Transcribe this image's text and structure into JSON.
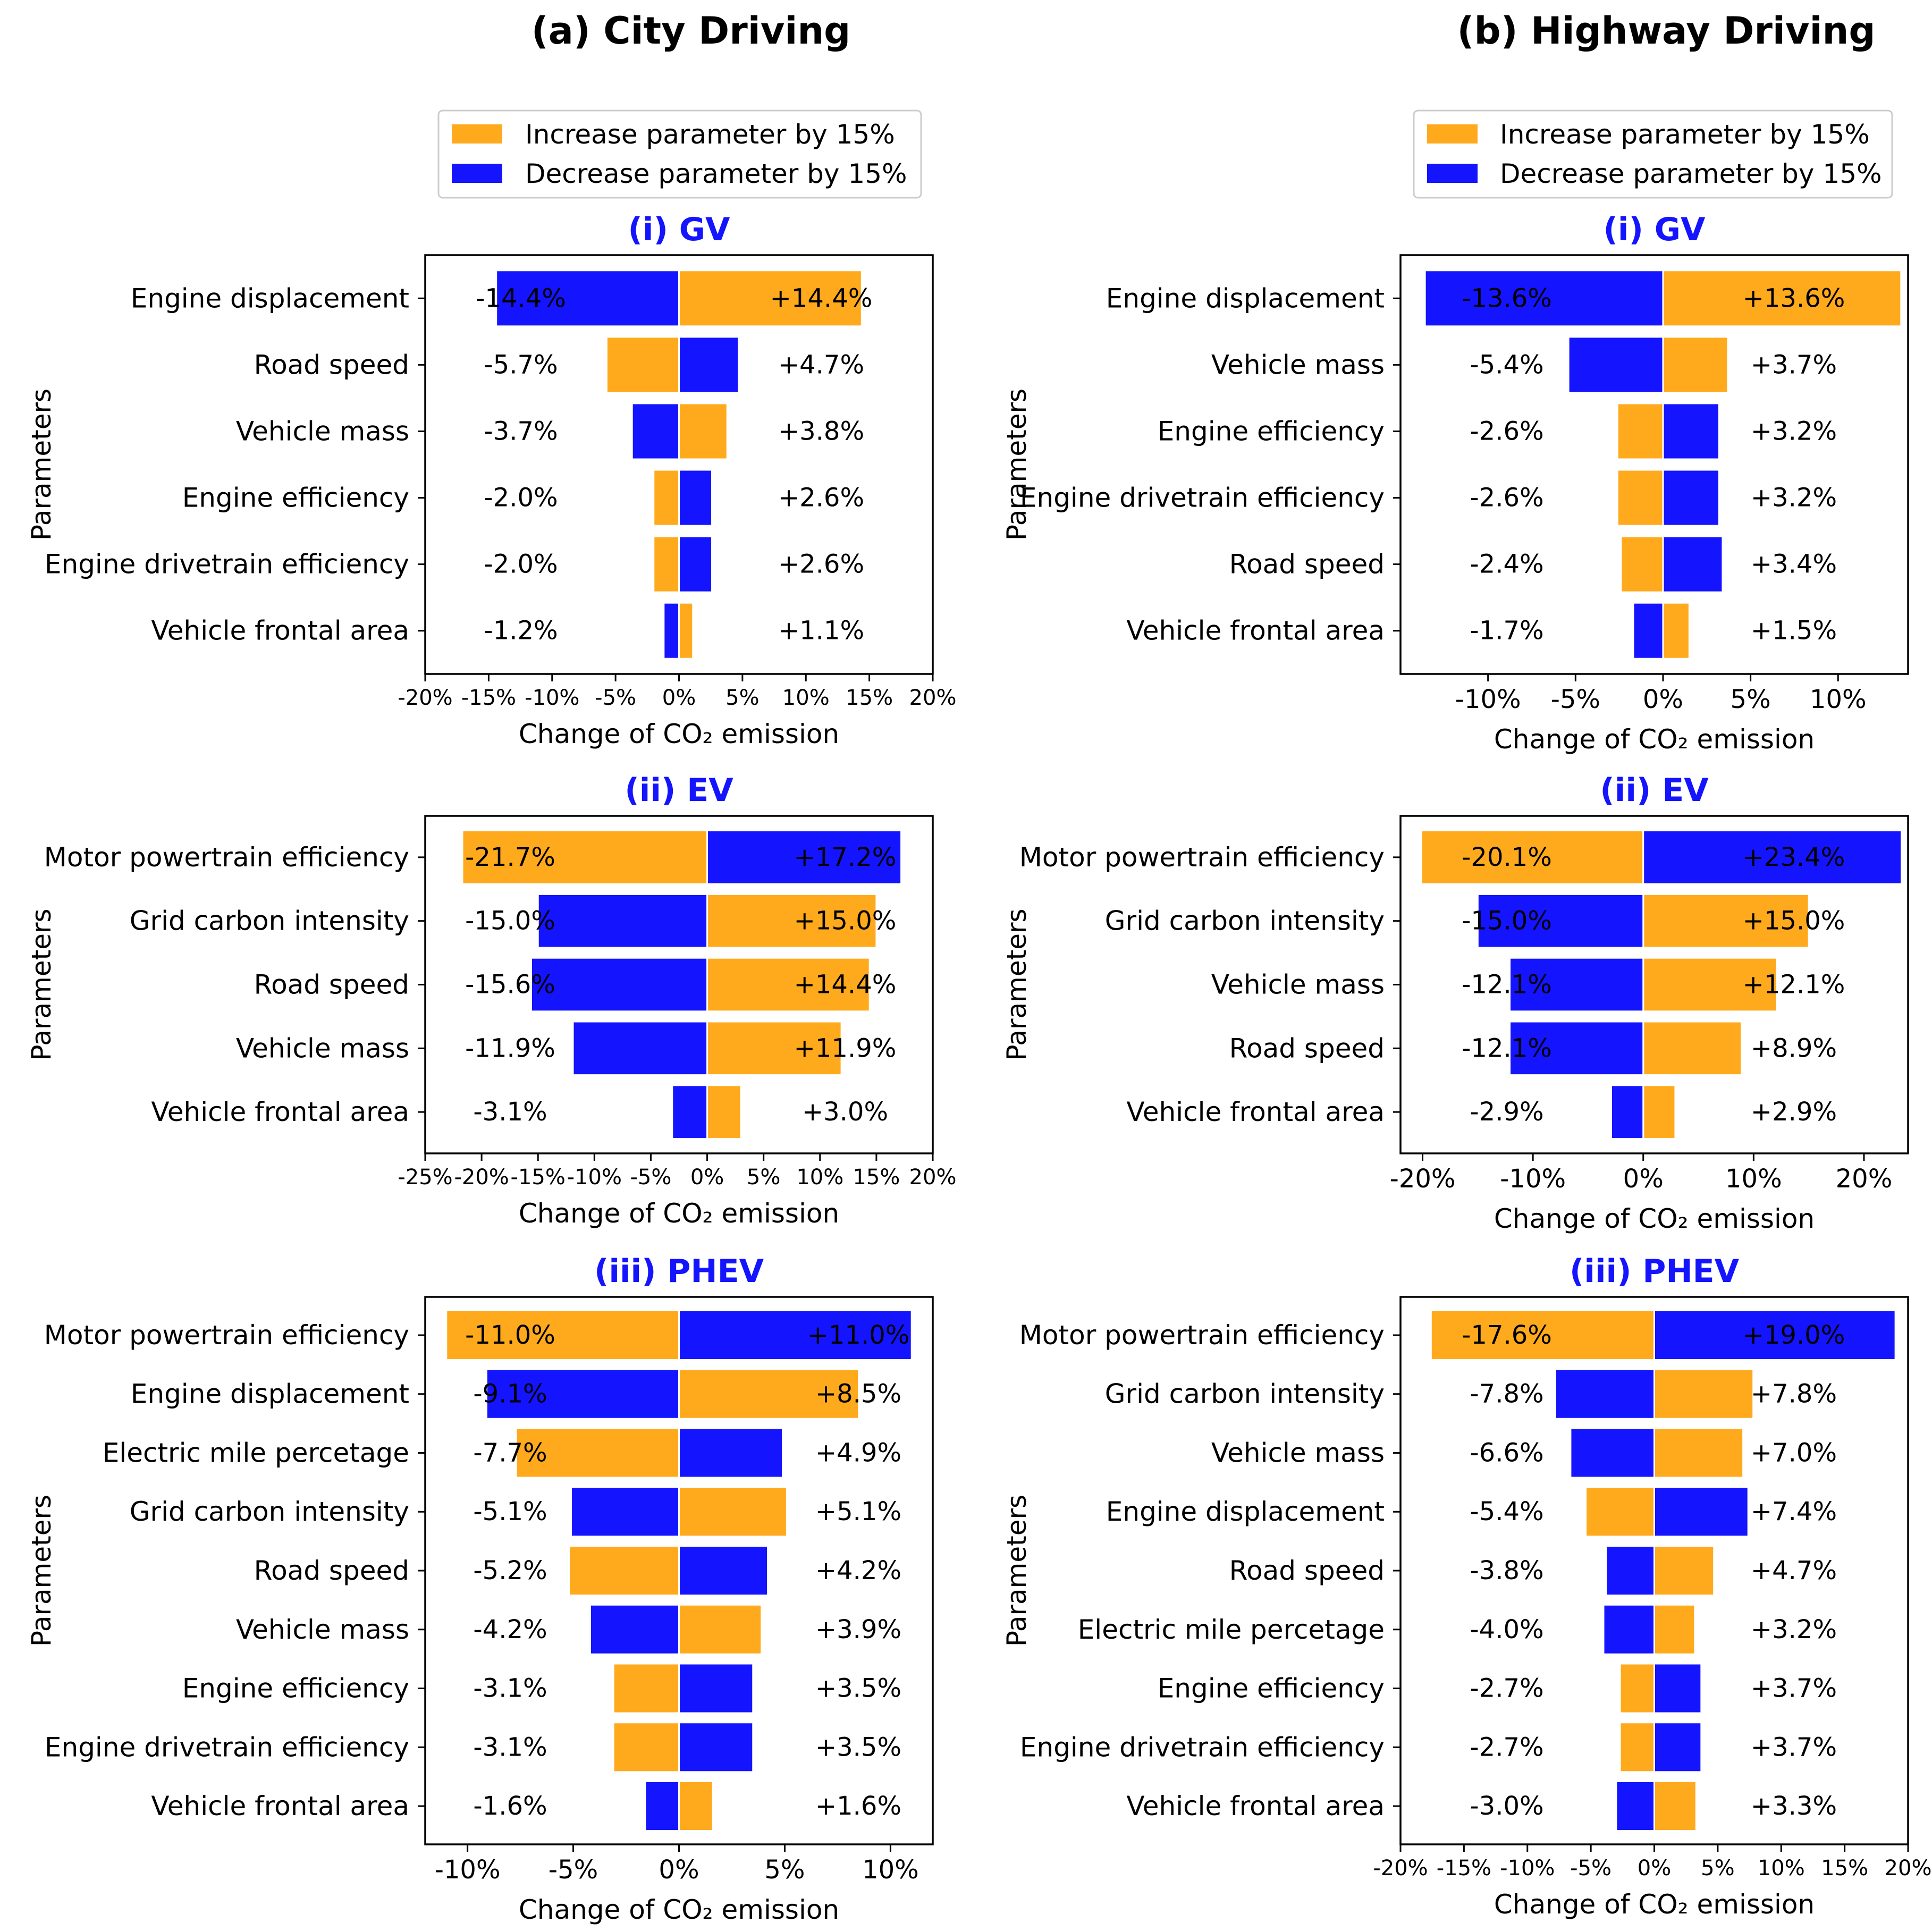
{
  "colors": {
    "increase": "#FFAA1C",
    "decrease": "#1414FF",
    "title_color": "#1414FF"
  },
  "columns": [
    {
      "title": "(a) City Driving"
    },
    {
      "title": "(b) Highway Driving"
    }
  ],
  "legend": {
    "placement": "above first panel of each column",
    "entries": [
      "Increase parameter by 15%",
      "Decrease parameter by 15%"
    ]
  },
  "chart_data": [
    {
      "type": "bar",
      "orientation": "horizontal",
      "column": 0,
      "title": "(i) GV",
      "xlabel": "Change of CO₂ emission",
      "ylabel": "Parameters",
      "xlim": [
        -20,
        20
      ],
      "xticks": [
        "-20%",
        "-15%",
        "-10%",
        "-5%",
        "0%",
        "5%",
        "10%",
        "15%",
        "20%"
      ],
      "xtick_values": [
        -20,
        -15,
        -10,
        -5,
        0,
        5,
        10,
        15,
        20
      ],
      "categories": [
        "Engine displacement",
        "Road speed",
        "Vehicle mass",
        "Engine efficiency",
        "Engine drivetrain efficiency",
        "Vehicle frontal area"
      ],
      "series": [
        {
          "name": "Increase parameter by 15%",
          "values": [
            14.4,
            -5.7,
            3.8,
            -2.0,
            -2.0,
            1.1
          ]
        },
        {
          "name": "Decrease parameter by 15%",
          "values": [
            -14.4,
            4.7,
            -3.7,
            2.6,
            2.6,
            -1.2
          ]
        }
      ],
      "labels_left": [
        "-14.4%",
        "-5.7%",
        "-3.7%",
        "-2.0%",
        "-2.0%",
        "-1.2%"
      ],
      "labels_right": [
        "+14.4%",
        "+4.7%",
        "+3.8%",
        "+2.6%",
        "+2.6%",
        "+1.1%"
      ]
    },
    {
      "type": "bar",
      "orientation": "horizontal",
      "column": 0,
      "title": "(ii) EV",
      "xlabel": "Change of CO₂ emission",
      "ylabel": "Parameters",
      "xlim": [
        -25,
        20
      ],
      "xticks": [
        "-25%",
        "-20%",
        "-15%",
        "-10%",
        "-5%",
        "0%",
        "5%",
        "10%",
        "15%",
        "20%"
      ],
      "xtick_values": [
        -25,
        -20,
        -15,
        -10,
        -5,
        0,
        5,
        10,
        15,
        20
      ],
      "categories": [
        "Motor powertrain efficiency",
        "Grid carbon intensity",
        "Road speed",
        "Vehicle mass",
        "Vehicle frontal area"
      ],
      "series": [
        {
          "name": "Increase parameter by 15%",
          "values": [
            -21.7,
            15.0,
            14.4,
            11.9,
            3.0
          ]
        },
        {
          "name": "Decrease parameter by 15%",
          "values": [
            17.2,
            -15.0,
            -15.6,
            -11.9,
            -3.1
          ]
        }
      ],
      "labels_left": [
        "-21.7%",
        "-15.0%",
        "-15.6%",
        "-11.9%",
        "-3.1%"
      ],
      "labels_right": [
        "+17.2%",
        "+15.0%",
        "+14.4%",
        "+11.9%",
        "+3.0%"
      ]
    },
    {
      "type": "bar",
      "orientation": "horizontal",
      "column": 0,
      "title": "(iii) PHEV",
      "xlabel": "Change of CO₂ emission",
      "ylabel": "Parameters",
      "xlim": [
        -12,
        12
      ],
      "xticks": [
        "-10%",
        "-5%",
        "0%",
        "5%",
        "10%"
      ],
      "xtick_values": [
        -10,
        -5,
        0,
        5,
        10
      ],
      "categories": [
        "Motor powertrain efficiency",
        "Engine displacement",
        "Electric mile percetage",
        "Grid carbon intensity",
        "Road speed",
        "Vehicle mass",
        "Engine efficiency",
        "Engine drivetrain efficiency",
        "Vehicle frontal area"
      ],
      "series": [
        {
          "name": "Increase parameter by 15%",
          "values": [
            -11.0,
            8.5,
            -7.7,
            5.1,
            -5.2,
            3.9,
            -3.1,
            -3.1,
            1.6
          ]
        },
        {
          "name": "Decrease parameter by 15%",
          "values": [
            11.0,
            -9.1,
            4.9,
            -5.1,
            4.2,
            -4.2,
            3.5,
            3.5,
            -1.6
          ]
        }
      ],
      "labels_left": [
        "-11.0%",
        "-9.1%",
        "-7.7%",
        "-5.1%",
        "-5.2%",
        "-4.2%",
        "-3.1%",
        "-3.1%",
        "-1.6%"
      ],
      "labels_right": [
        "+11.0%",
        "+8.5%",
        "+4.9%",
        "+5.1%",
        "+4.2%",
        "+3.9%",
        "+3.5%",
        "+3.5%",
        "+1.6%"
      ]
    },
    {
      "type": "bar",
      "orientation": "horizontal",
      "column": 1,
      "title": "(i) GV",
      "xlabel": "Change of CO₂ emission",
      "ylabel": "Parameters",
      "xlim": [
        -15,
        14
      ],
      "xticks": [
        "-10%",
        "-5%",
        "0%",
        "5%",
        "10%"
      ],
      "xtick_values": [
        -10,
        -5,
        0,
        5,
        10
      ],
      "categories": [
        "Engine displacement",
        "Vehicle mass",
        "Engine efficiency",
        "Engine drivetrain efficiency",
        "Road speed",
        "Vehicle frontal area"
      ],
      "series": [
        {
          "name": "Increase parameter by 15%",
          "values": [
            13.6,
            3.7,
            -2.6,
            -2.6,
            -2.4,
            1.5
          ]
        },
        {
          "name": "Decrease parameter by 15%",
          "values": [
            -13.6,
            -5.4,
            3.2,
            3.2,
            3.4,
            -1.7
          ]
        }
      ],
      "labels_left": [
        "-13.6%",
        "-5.4%",
        "-2.6%",
        "-2.6%",
        "-2.4%",
        "-1.7%"
      ],
      "labels_right": [
        "+13.6%",
        "+3.7%",
        "+3.2%",
        "+3.2%",
        "+3.4%",
        "+1.5%"
      ]
    },
    {
      "type": "bar",
      "orientation": "horizontal",
      "column": 1,
      "title": "(ii) EV",
      "xlabel": "Change of CO₂ emission",
      "ylabel": "Parameters",
      "xlim": [
        -22,
        24
      ],
      "xticks": [
        "-20%",
        "-10%",
        "0%",
        "10%",
        "20%"
      ],
      "xtick_values": [
        -20,
        -10,
        0,
        10,
        20
      ],
      "categories": [
        "Motor powertrain efficiency",
        "Grid carbon intensity",
        "Vehicle mass",
        "Road speed",
        "Vehicle frontal area"
      ],
      "series": [
        {
          "name": "Increase parameter by 15%",
          "values": [
            -20.1,
            15.0,
            12.1,
            8.9,
            2.9
          ]
        },
        {
          "name": "Decrease parameter by 15%",
          "values": [
            23.4,
            -15.0,
            -12.1,
            -12.1,
            -2.9
          ]
        }
      ],
      "labels_left": [
        "-20.1%",
        "-15.0%",
        "-12.1%",
        "-12.1%",
        "-2.9%"
      ],
      "labels_right": [
        "+23.4%",
        "+15.0%",
        "+12.1%",
        "+8.9%",
        "+2.9%"
      ]
    },
    {
      "type": "bar",
      "orientation": "horizontal",
      "column": 1,
      "title": "(iii) PHEV",
      "xlabel": "Change of CO₂ emission",
      "ylabel": "Parameters",
      "xlim": [
        -20,
        20
      ],
      "xticks": [
        "-20%",
        "-15%",
        "-10%",
        "-5%",
        "0%",
        "5%",
        "10%",
        "15%",
        "20%"
      ],
      "xtick_values": [
        -20,
        -15,
        -10,
        -5,
        0,
        5,
        10,
        15,
        20
      ],
      "categories": [
        "Motor powertrain efficiency",
        "Grid carbon intensity",
        "Vehicle mass",
        "Engine displacement",
        "Road speed",
        "Electric mile percetage",
        "Engine efficiency",
        "Engine drivetrain efficiency",
        "Vehicle frontal area"
      ],
      "series": [
        {
          "name": "Increase parameter by 15%",
          "values": [
            -17.6,
            7.8,
            7.0,
            -5.4,
            4.7,
            3.2,
            -2.7,
            -2.7,
            3.3
          ]
        },
        {
          "name": "Decrease parameter by 15%",
          "values": [
            19.0,
            -7.8,
            -6.6,
            7.4,
            -3.8,
            -4.0,
            3.7,
            3.7,
            -3.0
          ]
        }
      ],
      "labels_left": [
        "-17.6%",
        "-7.8%",
        "-6.6%",
        "-5.4%",
        "-3.8%",
        "-4.0%",
        "-2.7%",
        "-2.7%",
        "-3.0%"
      ],
      "labels_right": [
        "+19.0%",
        "+7.8%",
        "+7.0%",
        "+7.4%",
        "+4.7%",
        "+3.2%",
        "+3.7%",
        "+3.7%",
        "+3.3%"
      ]
    }
  ]
}
